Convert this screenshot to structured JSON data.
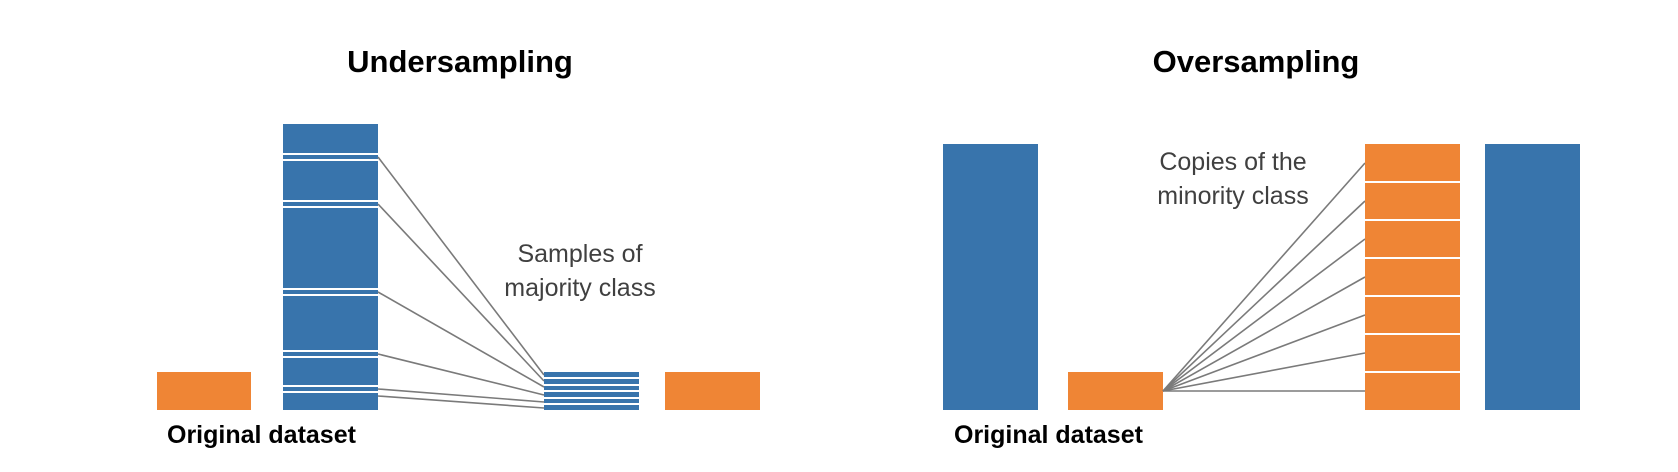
{
  "colors": {
    "majority": "#3874ac",
    "minority": "#ef8535",
    "connector": "#7a7a7a",
    "stripe": "#ffffff",
    "text": "#000000",
    "annotation_text": "#404040"
  },
  "undersampling": {
    "title": "Undersampling",
    "caption": "Original dataset",
    "annotation_line1": "Samples of",
    "annotation_line2": "majority class",
    "source_sample_count": 6,
    "result_sample_count": 6
  },
  "oversampling": {
    "title": "Oversampling",
    "caption": "Original dataset",
    "annotation_line1": "Copies of the",
    "annotation_line2": "minority class",
    "copy_count": 7
  }
}
